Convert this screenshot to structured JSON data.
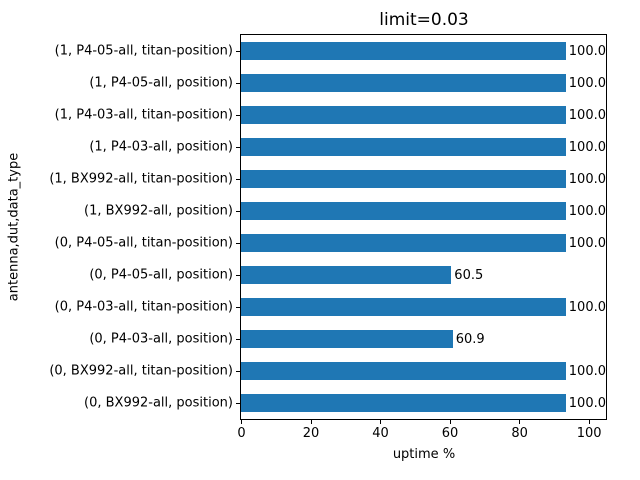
{
  "chart_data": {
    "type": "bar",
    "orientation": "horizontal",
    "title": "limit=0.03",
    "xlabel": "uptime %",
    "ylabel": "antenna,dut,data_type",
    "categories": [
      "(1, P4-05-all, titan-position)",
      "(1, P4-05-all, position)",
      "(1, P4-03-all, titan-position)",
      "(1, P4-03-all, position)",
      "(1, BX992-all, titan-position)",
      "(1, BX992-all, position)",
      "(0, P4-05-all, titan-position)",
      "(0, P4-05-all, position)",
      "(0, P4-03-all, titan-position)",
      "(0, P4-03-all, position)",
      "(0, BX992-all, titan-position)",
      "(0, BX992-all, position)"
    ],
    "values": [
      100.0,
      100.0,
      100.0,
      100.0,
      100.0,
      100.0,
      100.0,
      60.5,
      100.0,
      60.9,
      100.0,
      100.0
    ],
    "bar_labels": [
      "100.0",
      "100.0",
      "100.0",
      "100.0",
      "100.0",
      "100.0",
      "100.0",
      "60.5",
      "100.0",
      "60.9",
      "100.0",
      "100.0"
    ],
    "xticks": [
      0,
      20,
      40,
      60,
      80,
      100
    ],
    "xlim": [
      0,
      105
    ],
    "grid": false,
    "bar_color": "#1f77b4",
    "text_color": "#000000",
    "background_color": "#ffffff"
  }
}
